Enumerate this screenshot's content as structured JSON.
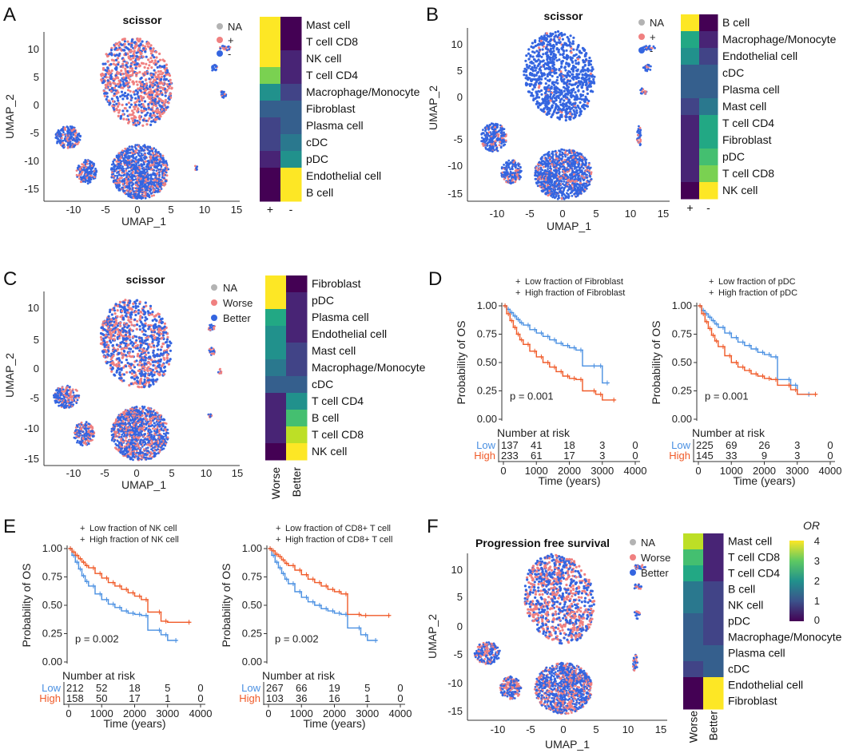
{
  "colors": {
    "na": "#b3b3b3",
    "pos": "#f08080",
    "neg": "#3465e0",
    "km_low": "#4a90e2",
    "km_high": "#f05a28",
    "viridis": [
      "#440154",
      "#482475",
      "#414487",
      "#355f8d",
      "#2a788e",
      "#21918c",
      "#22a884",
      "#44bf70",
      "#7ad151",
      "#bddf26",
      "#fde725"
    ]
  },
  "panels": {
    "A": {
      "label": "A",
      "title": "scissor",
      "xlabel": "UMAP_1",
      "ylabel": "UMAP_2",
      "xticks": [
        "-10",
        "-5",
        "0",
        "5",
        "10",
        "15"
      ],
      "yticks": [
        "10",
        "5",
        "0",
        "-5",
        "-10",
        "-15"
      ],
      "legend": [
        "NA",
        "+",
        "-"
      ]
    },
    "B": {
      "label": "B",
      "title": "scissor",
      "xlabel": "UMAP_1",
      "ylabel": "UMAP_2",
      "xticks": [
        "-10",
        "-5",
        "0",
        "5",
        "10",
        "15"
      ],
      "yticks": [
        "10",
        "5",
        "0",
        "-5",
        "-10",
        "-15"
      ],
      "legend": [
        "NA",
        "+",
        "-"
      ]
    },
    "C": {
      "label": "C",
      "title": "scissor",
      "xlabel": "UMAP_1",
      "ylabel": "UMAP_2",
      "xticks": [
        "-10",
        "-5",
        "0",
        "5",
        "10",
        "15"
      ],
      "yticks": [
        "10",
        "5",
        "0",
        "-5",
        "-10",
        "-15"
      ],
      "legend": [
        "NA",
        "Worse",
        "Better"
      ]
    },
    "D": {
      "label": "D"
    },
    "E": {
      "label": "E"
    },
    "F": {
      "label": "F",
      "title": "Progression free survival",
      "xlabel": "UMAP_1",
      "ylabel": "UMAP_2",
      "xticks": [
        "-10",
        "-5",
        "0",
        "5",
        "10",
        "15"
      ],
      "yticks": [
        "10",
        "5",
        "0",
        "-5",
        "-10",
        "-15"
      ],
      "legend": [
        "NA",
        "Worse",
        "Better"
      ],
      "colorbar_title": "OR",
      "colorbar_ticks": [
        "4",
        "3",
        "2",
        "1",
        "0"
      ]
    }
  },
  "chart_data": [
    {
      "id": "A_heatmap",
      "type": "heatmap",
      "rows": [
        "Mast cell",
        "T cell CD8",
        "NK cell",
        "T cell CD4",
        "Macrophage/Monocyte",
        "Fibroblast",
        "Plasma cell",
        "cDC",
        "pDC",
        "Endothelial cell",
        "B cell"
      ],
      "columns": [
        "+",
        "-"
      ],
      "values": [
        [
          4.0,
          0.1
        ],
        [
          4.0,
          0.1
        ],
        [
          4.0,
          0.2
        ],
        [
          3.0,
          0.4
        ],
        [
          1.8,
          0.7
        ],
        [
          1.0,
          1.0
        ],
        [
          0.8,
          1.3
        ],
        [
          0.6,
          1.7
        ],
        [
          0.5,
          2.0
        ],
        [
          0.1,
          4.0
        ],
        [
          0.1,
          4.0
        ]
      ],
      "scale": [
        0,
        4
      ]
    },
    {
      "id": "B_heatmap",
      "type": "heatmap",
      "rows": [
        "B cell",
        "Macrophage/Monocyte",
        "Endothelial cell",
        "cDC",
        "Plasma cell",
        "Mast cell",
        "T cell CD4",
        "Fibroblast",
        "pDC",
        "T cell CD8",
        "NK cell"
      ],
      "columns": [
        "+",
        "-"
      ],
      "values": [
        [
          4.0,
          0.1
        ],
        [
          2.4,
          0.4
        ],
        [
          1.8,
          0.6
        ],
        [
          1.1,
          1.1
        ],
        [
          1.0,
          1.3
        ],
        [
          0.9,
          1.5
        ],
        [
          0.4,
          2.2
        ],
        [
          0.3,
          2.5
        ],
        [
          0.3,
          2.7
        ],
        [
          0.2,
          3.3
        ],
        [
          0.1,
          3.8
        ]
      ],
      "scale": [
        0,
        4
      ]
    },
    {
      "id": "C_heatmap",
      "type": "heatmap",
      "rows": [
        "Fibroblast",
        "pDC",
        "Plasma cell",
        "Endothelial cell",
        "Mast cell",
        "Macrophage/Monocyte",
        "cDC",
        "T cell CD4",
        "B cell",
        "T cell CD8",
        "NK cell"
      ],
      "columns": [
        "Worse",
        "Better"
      ],
      "values": [
        [
          4.0,
          0.1
        ],
        [
          4.0,
          0.2
        ],
        [
          2.2,
          0.5
        ],
        [
          2.1,
          0.5
        ],
        [
          1.9,
          0.6
        ],
        [
          1.6,
          0.8
        ],
        [
          1.1,
          1.1
        ],
        [
          0.5,
          2.0
        ],
        [
          0.4,
          2.6
        ],
        [
          0.3,
          3.4
        ],
        [
          0.1,
          4.0
        ]
      ],
      "scale": [
        0,
        4
      ]
    },
    {
      "id": "F_heatmap",
      "type": "heatmap",
      "rows": [
        "Mast cell",
        "T cell CD8",
        "T cell CD4",
        "B cell",
        "NK cell",
        "pDC",
        "Macrophage/Monocyte",
        "Plasma cell",
        "cDC",
        "Endothelial cell",
        "Fibroblast"
      ],
      "columns": [
        "Worse",
        "Better"
      ],
      "values": [
        [
          3.6,
          0.2
        ],
        [
          2.9,
          0.3
        ],
        [
          2.5,
          0.4
        ],
        [
          1.6,
          0.6
        ],
        [
          1.5,
          0.7
        ],
        [
          1.3,
          0.8
        ],
        [
          1.1,
          0.9
        ],
        [
          1.0,
          1.0
        ],
        [
          0.9,
          1.1
        ],
        [
          0.1,
          4.0
        ],
        [
          0.1,
          4.0
        ]
      ],
      "scale": [
        0,
        4
      ]
    },
    {
      "id": "D1_km",
      "type": "line",
      "ylabel": "Probability of OS",
      "xlabel": "Time (years)",
      "xlim": [
        0,
        4000
      ],
      "ylim": [
        0,
        1
      ],
      "xticks": [
        "0",
        "1000",
        "2000",
        "3000",
        "4000"
      ],
      "yticks": [
        "1.00",
        "0.75",
        "0.50",
        "0.25",
        "0.00"
      ],
      "pvalue": "p =  0.001",
      "legend_low": "Low  fraction of Fibroblast",
      "legend_high": "High  fraction of Fibroblast",
      "series": [
        {
          "name": "Low",
          "x": [
            0,
            100,
            200,
            300,
            400,
            500,
            600,
            800,
            1000,
            1200,
            1400,
            1600,
            1800,
            2000,
            2200,
            2400,
            2800,
            3000,
            3200
          ],
          "y": [
            1.0,
            0.97,
            0.94,
            0.91,
            0.88,
            0.85,
            0.83,
            0.79,
            0.76,
            0.73,
            0.7,
            0.67,
            0.65,
            0.63,
            0.61,
            0.47,
            0.47,
            0.32,
            0.32
          ]
        },
        {
          "name": "High",
          "x": [
            0,
            100,
            200,
            300,
            400,
            500,
            600,
            800,
            1000,
            1200,
            1400,
            1600,
            1800,
            2000,
            2200,
            2400,
            2800,
            3000,
            3400
          ],
          "y": [
            1.0,
            0.93,
            0.87,
            0.81,
            0.75,
            0.7,
            0.66,
            0.6,
            0.55,
            0.5,
            0.46,
            0.42,
            0.38,
            0.36,
            0.35,
            0.25,
            0.22,
            0.17,
            0.17
          ]
        }
      ],
      "risk_title": "Number at risk",
      "risk": [
        {
          "name": "Low",
          "values": [
            "137",
            "41",
            "18",
            "3",
            "0"
          ]
        },
        {
          "name": "High",
          "values": [
            "233",
            "61",
            "17",
            "3",
            "0"
          ]
        }
      ]
    },
    {
      "id": "D2_km",
      "type": "line",
      "ylabel": "Probability of OS",
      "xlabel": "Time (years)",
      "xlim": [
        0,
        4000
      ],
      "ylim": [
        0,
        1
      ],
      "xticks": [
        "0",
        "1000",
        "2000",
        "3000",
        "4000"
      ],
      "yticks": [
        "1.00",
        "0.75",
        "0.50",
        "0.25",
        "0.00"
      ],
      "pvalue": "p =  0.001",
      "legend_low": "Low  fraction of pDC",
      "legend_high": "High  fraction of pDC",
      "series": [
        {
          "name": "Low",
          "x": [
            0,
            100,
            200,
            300,
            400,
            500,
            600,
            800,
            1000,
            1200,
            1400,
            1600,
            1800,
            2000,
            2200,
            2400,
            2800,
            3000,
            3400
          ],
          "y": [
            1.0,
            0.96,
            0.93,
            0.9,
            0.87,
            0.84,
            0.81,
            0.76,
            0.72,
            0.68,
            0.65,
            0.62,
            0.59,
            0.57,
            0.55,
            0.35,
            0.3,
            0.22,
            0.22
          ]
        },
        {
          "name": "High",
          "x": [
            0,
            100,
            200,
            300,
            400,
            500,
            600,
            800,
            1000,
            1200,
            1400,
            1600,
            1800,
            2000,
            2200,
            2400,
            2800,
            3000,
            3600
          ],
          "y": [
            1.0,
            0.93,
            0.86,
            0.8,
            0.74,
            0.69,
            0.64,
            0.56,
            0.5,
            0.46,
            0.43,
            0.4,
            0.38,
            0.36,
            0.35,
            0.3,
            0.26,
            0.22,
            0.22
          ]
        }
      ],
      "risk_title": "Number at risk",
      "risk": [
        {
          "name": "Low",
          "values": [
            "225",
            "69",
            "26",
            "3",
            "0"
          ]
        },
        {
          "name": "High",
          "values": [
            "145",
            "33",
            "9",
            "3",
            "0"
          ]
        }
      ]
    },
    {
      "id": "E1_km",
      "type": "line",
      "ylabel": "Probability of OS",
      "xlabel": "Time (years)",
      "xlim": [
        0,
        4000
      ],
      "ylim": [
        0,
        1
      ],
      "xticks": [
        "0",
        "1000",
        "2000",
        "3000",
        "4000"
      ],
      "yticks": [
        "1.00",
        "0.75",
        "0.50",
        "0.25",
        "0.00"
      ],
      "pvalue": "p =  0.002",
      "legend_low": "Low  fraction of NK cell",
      "legend_high": "High  fraction of NK cell",
      "series": [
        {
          "name": "Low",
          "x": [
            0,
            100,
            200,
            300,
            400,
            500,
            600,
            800,
            1000,
            1200,
            1400,
            1600,
            1800,
            2000,
            2200,
            2400,
            2800,
            3000,
            3300
          ],
          "y": [
            1.0,
            0.94,
            0.88,
            0.82,
            0.76,
            0.71,
            0.67,
            0.6,
            0.55,
            0.51,
            0.48,
            0.45,
            0.43,
            0.42,
            0.41,
            0.28,
            0.24,
            0.19,
            0.19
          ]
        },
        {
          "name": "High",
          "x": [
            0,
            100,
            200,
            300,
            400,
            500,
            600,
            800,
            1000,
            1200,
            1400,
            1600,
            1800,
            2000,
            2200,
            2400,
            2800,
            3000,
            3700
          ],
          "y": [
            1.0,
            0.97,
            0.94,
            0.91,
            0.88,
            0.85,
            0.83,
            0.78,
            0.74,
            0.7,
            0.67,
            0.64,
            0.61,
            0.58,
            0.55,
            0.44,
            0.36,
            0.35,
            0.35
          ]
        }
      ],
      "risk_title": "Number at risk",
      "risk": [
        {
          "name": "Low",
          "values": [
            "212",
            "52",
            "18",
            "5",
            "0"
          ]
        },
        {
          "name": "High",
          "values": [
            "158",
            "50",
            "17",
            "1",
            "0"
          ]
        }
      ]
    },
    {
      "id": "E2_km",
      "type": "line",
      "ylabel": "Probability of OS",
      "xlabel": "Time (years)",
      "xlim": [
        0,
        4000
      ],
      "ylim": [
        0,
        1
      ],
      "xticks": [
        "0",
        "1000",
        "2000",
        "3000",
        "4000"
      ],
      "yticks": [
        "1.00",
        "0.75",
        "0.50",
        "0.25",
        "0.00"
      ],
      "pvalue": "p =  0.002",
      "legend_low": "Low  fraction of CD8+ T cell",
      "legend_high": "High  fraction of CD8+ T cell",
      "series": [
        {
          "name": "Low",
          "x": [
            0,
            100,
            200,
            300,
            400,
            500,
            600,
            800,
            1000,
            1200,
            1400,
            1600,
            1800,
            2000,
            2200,
            2400,
            2800,
            3000,
            3300
          ],
          "y": [
            1.0,
            0.94,
            0.88,
            0.83,
            0.78,
            0.73,
            0.69,
            0.62,
            0.57,
            0.53,
            0.5,
            0.47,
            0.45,
            0.43,
            0.42,
            0.3,
            0.24,
            0.19,
            0.19
          ]
        },
        {
          "name": "High",
          "x": [
            0,
            100,
            200,
            300,
            400,
            500,
            600,
            800,
            1000,
            1200,
            1400,
            1600,
            1800,
            2000,
            2200,
            2400,
            2800,
            3000,
            3700
          ],
          "y": [
            1.0,
            0.98,
            0.95,
            0.93,
            0.9,
            0.87,
            0.85,
            0.81,
            0.77,
            0.73,
            0.7,
            0.67,
            0.64,
            0.62,
            0.6,
            0.42,
            0.41,
            0.41,
            0.41
          ]
        }
      ],
      "risk_title": "Number at risk",
      "risk": [
        {
          "name": "Low",
          "values": [
            "267",
            "66",
            "19",
            "5",
            "0"
          ]
        },
        {
          "name": "High",
          "values": [
            "103",
            "36",
            "16",
            "1",
            "0"
          ]
        }
      ]
    }
  ]
}
